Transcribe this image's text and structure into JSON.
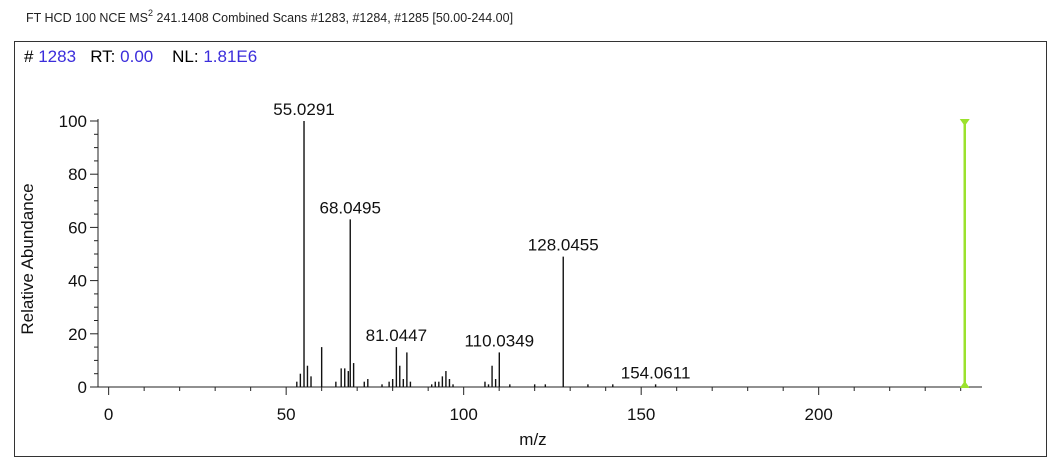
{
  "header": {
    "prefix": "FT HCD 100 NCE MS",
    "superscript": "2",
    "suffix": " 241.1408 Combined Scans #1283, #1284, #1285 [50.00-244.00]"
  },
  "scan_info": {
    "scan_label": "#",
    "scan_value": "1283",
    "rt_label": "RT:",
    "rt_value": "0.00",
    "nl_label": "NL:",
    "nl_value": "1.81E6"
  },
  "colors": {
    "peak": "#111111",
    "label_value": "#3b2ddb",
    "precursor_marker": "#9be22d"
  },
  "chart_data": {
    "type": "bar",
    "xlabel": "m/z",
    "ylabel": "Relative Abundance",
    "xlim": [
      -3,
      246
    ],
    "ylim": [
      0,
      100
    ],
    "x_ticks": [
      0,
      50,
      100,
      150,
      200
    ],
    "y_ticks": [
      0,
      20,
      40,
      60,
      80,
      100
    ],
    "peaks": [
      {
        "mz": 53.0,
        "intensity": 2
      },
      {
        "mz": 54.0,
        "intensity": 5
      },
      {
        "mz": 55.0291,
        "intensity": 100,
        "label": "55.0291"
      },
      {
        "mz": 56.0,
        "intensity": 8
      },
      {
        "mz": 57.0,
        "intensity": 4
      },
      {
        "mz": 60.0,
        "intensity": 15
      },
      {
        "mz": 64.0,
        "intensity": 2
      },
      {
        "mz": 65.5,
        "intensity": 7
      },
      {
        "mz": 66.5,
        "intensity": 7
      },
      {
        "mz": 67.5,
        "intensity": 6
      },
      {
        "mz": 68.0495,
        "intensity": 63,
        "label": "68.0495"
      },
      {
        "mz": 69.0,
        "intensity": 9
      },
      {
        "mz": 72.0,
        "intensity": 2
      },
      {
        "mz": 73.0,
        "intensity": 3
      },
      {
        "mz": 77.0,
        "intensity": 1
      },
      {
        "mz": 79.0,
        "intensity": 2
      },
      {
        "mz": 80.0,
        "intensity": 3
      },
      {
        "mz": 81.0447,
        "intensity": 15,
        "label": "81.0447"
      },
      {
        "mz": 82.0,
        "intensity": 8
      },
      {
        "mz": 83.0,
        "intensity": 3
      },
      {
        "mz": 84.0,
        "intensity": 13
      },
      {
        "mz": 85.0,
        "intensity": 2
      },
      {
        "mz": 91.0,
        "intensity": 1
      },
      {
        "mz": 92.0,
        "intensity": 2
      },
      {
        "mz": 93.0,
        "intensity": 2
      },
      {
        "mz": 94.0,
        "intensity": 4
      },
      {
        "mz": 95.0,
        "intensity": 6
      },
      {
        "mz": 96.0,
        "intensity": 3
      },
      {
        "mz": 97.0,
        "intensity": 1
      },
      {
        "mz": 106.0,
        "intensity": 2
      },
      {
        "mz": 107.0,
        "intensity": 1
      },
      {
        "mz": 108.0,
        "intensity": 8
      },
      {
        "mz": 109.0,
        "intensity": 3
      },
      {
        "mz": 110.0349,
        "intensity": 13,
        "label": "110.0349"
      },
      {
        "mz": 113.0,
        "intensity": 1
      },
      {
        "mz": 120.0,
        "intensity": 1
      },
      {
        "mz": 123.0,
        "intensity": 1
      },
      {
        "mz": 128.0455,
        "intensity": 49,
        "label": "128.0455"
      },
      {
        "mz": 135.0,
        "intensity": 1
      },
      {
        "mz": 142.0,
        "intensity": 1
      },
      {
        "mz": 154.0611,
        "intensity": 1,
        "label": "154.0611"
      }
    ],
    "precursor_marker": {
      "mz": 241.1408,
      "intensity": 100
    }
  }
}
